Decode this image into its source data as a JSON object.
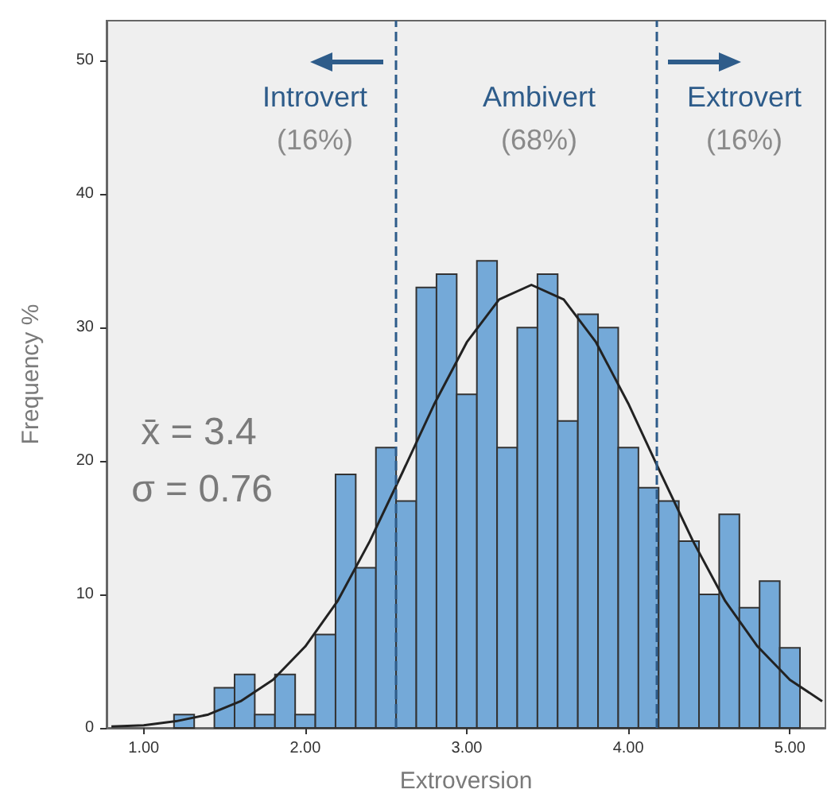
{
  "chart_data": {
    "type": "histogram",
    "xlabel": "Extroversion",
    "ylabel": "Frequency %",
    "bins": [
      1.1875,
      1.3125,
      1.4375,
      1.5625,
      1.6875,
      1.8125,
      1.9375,
      2.0625,
      2.1875,
      2.3125,
      2.4375,
      2.5625,
      2.6875,
      2.8125,
      2.9375,
      3.0625,
      3.1875,
      3.3125,
      3.4375,
      3.5625,
      3.6875,
      3.8125,
      3.9375,
      4.0625,
      4.1875,
      4.3125,
      4.4375,
      4.5625,
      4.6875,
      4.8125,
      4.9375,
      5.0625
    ],
    "values": [
      1,
      0,
      3,
      4,
      1,
      4,
      1,
      7,
      19,
      12,
      21,
      17,
      33,
      34,
      25,
      35,
      21,
      30,
      34,
      23,
      31,
      30,
      21,
      18,
      17,
      14,
      10,
      16,
      9,
      11,
      6
    ],
    "color": "#74a9d8",
    "series": [
      {
        "type": "line",
        "color": "#222222",
        "marker": "none",
        "x": [
          0.8,
          1.0,
          1.2,
          1.4,
          1.6,
          1.8,
          2.0,
          2.2,
          2.4,
          2.6,
          2.8,
          3.0,
          3.2,
          3.4,
          3.6,
          3.8,
          4.0,
          4.2,
          4.4,
          4.6,
          4.8,
          5.0,
          5.2
        ],
        "values": [
          0.1,
          0.2,
          0.5,
          1.0,
          2.0,
          3.6,
          6.1,
          9.5,
          14.0,
          19.1,
          24.3,
          28.9,
          32.1,
          33.2,
          32.1,
          28.9,
          24.3,
          19.1,
          14.0,
          9.5,
          6.1,
          3.6,
          2.0
        ]
      }
    ],
    "xlim": [
      0.77,
      5.22
    ],
    "ylim": [
      0,
      53
    ],
    "xticks": [
      {
        "value": 1,
        "label": "1.00"
      },
      {
        "value": 2,
        "label": "2.00"
      },
      {
        "value": 3,
        "label": "3.00"
      },
      {
        "value": 4,
        "label": "4.00"
      },
      {
        "value": 5,
        "label": "5.00"
      }
    ],
    "yticks": [
      0,
      10,
      20,
      30,
      40,
      50
    ],
    "ref_lines": [
      {
        "axis": "x",
        "value": 2.56,
        "color": "#2e5c8a",
        "line_style": "dashed"
      },
      {
        "axis": "x",
        "value": 4.17,
        "color": "#2e5c8a",
        "line_style": "dashed"
      }
    ],
    "annotations": [
      "Introvert",
      "(16%)",
      "Ambivert",
      "(68%)",
      "Extrovert",
      "(16%)",
      "x̄ = 3.4",
      "σ = 0.76"
    ],
    "grid": false
  }
}
